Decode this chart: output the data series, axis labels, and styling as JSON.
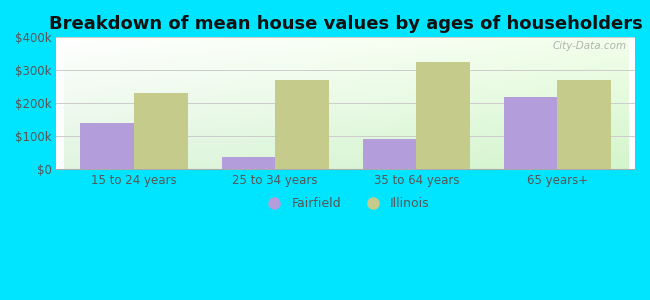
{
  "title": "Breakdown of mean house values by ages of householders",
  "categories": [
    "15 to 24 years",
    "25 to 34 years",
    "35 to 64 years",
    "65 years+"
  ],
  "fairfield_values": [
    140000,
    35000,
    90000,
    220000
  ],
  "illinois_values": [
    230000,
    270000,
    325000,
    270000
  ],
  "fairfield_color": "#b39ddb",
  "illinois_color": "#c5cb8a",
  "background_color": "#00e5ff",
  "ylim": [
    0,
    400000
  ],
  "yticks": [
    0,
    100000,
    200000,
    300000,
    400000
  ],
  "ytick_labels": [
    "$0",
    "$100k",
    "$200k",
    "$300k",
    "$400k"
  ],
  "legend_labels": [
    "Fairfield",
    "Illinois"
  ],
  "bar_width": 0.38,
  "title_fontsize": 13,
  "watermark_text": "City-Data.com"
}
